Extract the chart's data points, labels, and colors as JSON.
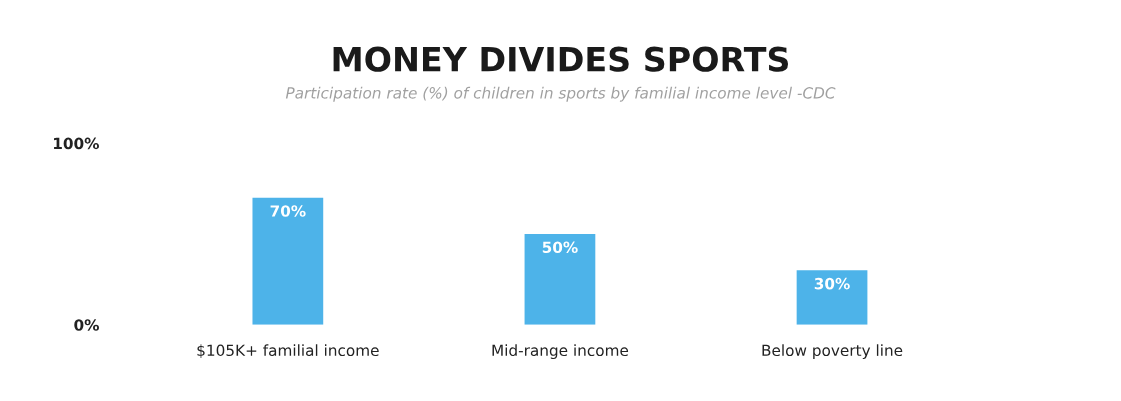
{
  "chart_data": {
    "type": "bar",
    "title": "MONEY DIVIDES SPORTS",
    "subtitle": "Participation rate (%) of children in sports by familial income level -CDC",
    "categories": [
      "$105K+ familial income",
      "Mid-range income",
      "Below poverty line"
    ],
    "values": [
      70,
      50,
      30
    ],
    "color": "#4db3e9",
    "value_labels": [
      "70%",
      "50%",
      "30%"
    ],
    "ylim": [
      0,
      100
    ],
    "yticks": [
      {
        "value": 0,
        "label": "0%"
      },
      {
        "value": 100,
        "label": "100%"
      }
    ],
    "grid": false,
    "legend": false
  }
}
